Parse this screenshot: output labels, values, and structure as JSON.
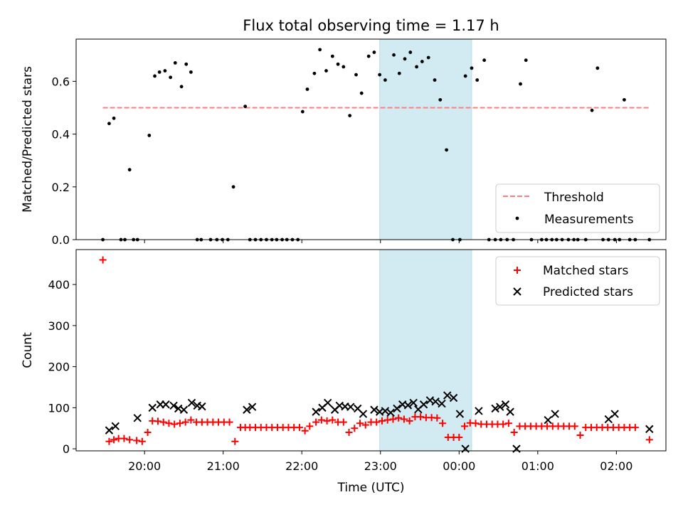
{
  "chart_data": [
    {
      "type": "scatter",
      "title": "Flux total observing time = 1.17 h",
      "ylabel": "Matched/Predicted stars",
      "xlabel": "",
      "x_unit": "hour (UTC)",
      "xlim": [
        19.13,
        26.63
      ],
      "ylim": [
        0,
        0.76
      ],
      "yticks": [
        0.0,
        0.2,
        0.4,
        0.6
      ],
      "ytick_labels": [
        "0.0",
        "0.2",
        "0.4",
        "0.6"
      ],
      "grid": false,
      "legend_position": "lower-right",
      "shaded_region": {
        "x": [
          22.99,
          24.16
        ],
        "color": "#add8e6"
      },
      "threshold": {
        "name": "Threshold",
        "value": 0.5,
        "x": [
          19.47,
          26.42
        ],
        "color": "#ff7f7f",
        "style": "dashed"
      },
      "series": [
        {
          "name": "Measurements",
          "color": "#000000",
          "marker": "dot",
          "x": [
            19.47,
            19.55,
            19.61,
            19.7,
            19.75,
            19.81,
            19.86,
            19.91,
            20.06,
            20.13,
            20.19,
            20.26,
            20.33,
            20.39,
            20.47,
            20.53,
            20.59,
            20.67,
            20.72,
            20.84,
            20.92,
            20.99,
            21.06,
            21.13,
            21.28,
            21.34,
            21.41,
            21.48,
            21.55,
            21.62,
            21.68,
            21.75,
            21.81,
            21.88,
            21.95,
            22.01,
            22.07,
            22.16,
            22.23,
            22.31,
            22.39,
            22.46,
            22.53,
            22.61,
            22.69,
            22.76,
            22.85,
            22.92,
            22.99,
            23.06,
            23.17,
            23.24,
            23.31,
            23.38,
            23.46,
            23.53,
            23.61,
            23.69,
            23.76,
            23.84,
            23.92,
            24.01,
            24.08,
            24.16,
            24.23,
            24.32,
            24.38,
            24.46,
            24.53,
            24.61,
            24.69,
            24.78,
            24.85,
            24.92,
            25.05,
            25.11,
            25.18,
            25.24,
            25.31,
            25.39,
            25.46,
            25.51,
            25.61,
            25.69,
            25.76,
            25.83,
            25.9,
            25.98,
            26.04,
            26.1,
            26.17,
            26.24,
            26.42
          ],
          "y": [
            0.0,
            0.44,
            0.46,
            0.0,
            0.0,
            0.265,
            0.0,
            0.0,
            0.395,
            0.62,
            0.635,
            0.64,
            0.615,
            0.67,
            0.58,
            0.665,
            0.635,
            0.0,
            0.0,
            0.0,
            0.0,
            0.0,
            0.0,
            0.2,
            0.505,
            0.0,
            0.0,
            0.0,
            0.0,
            0.0,
            0.0,
            0.0,
            0.0,
            0.0,
            0.0,
            0.485,
            0.57,
            0.63,
            0.72,
            0.64,
            0.695,
            0.665,
            0.655,
            0.47,
            0.625,
            0.555,
            0.695,
            0.71,
            0.625,
            0.605,
            0.7,
            0.63,
            0.685,
            0.71,
            0.655,
            0.675,
            0.69,
            0.605,
            0.53,
            0.34,
            0.0,
            0.0,
            0.62,
            0.65,
            0.605,
            0.68,
            0.0,
            0.0,
            0.0,
            0.0,
            0.0,
            0.59,
            0.68,
            0.0,
            0.0,
            0.0,
            0.0,
            0.0,
            0.0,
            0.0,
            0.0,
            0.0,
            0.0,
            0.49,
            0.65,
            0.0,
            0.0,
            0.0,
            0.0,
            0.53,
            0.0,
            0.0,
            0.0
          ]
        }
      ]
    },
    {
      "type": "scatter",
      "title": "",
      "ylabel": "Count",
      "xlabel": "Time (UTC)",
      "x_unit": "hour (UTC)",
      "xlim": [
        19.13,
        26.63
      ],
      "ylim": [
        -5,
        485
      ],
      "yticks": [
        0,
        100,
        200,
        300,
        400
      ],
      "ytick_labels": [
        "0",
        "100",
        "200",
        "300",
        "400"
      ],
      "xticks": [
        20,
        21,
        22,
        23,
        24,
        25,
        26
      ],
      "xtick_labels": [
        "20:00",
        "21:00",
        "22:00",
        "23:00",
        "00:00",
        "01:00",
        "02:00"
      ],
      "grid": false,
      "legend_position": "top-right",
      "shaded_region": {
        "x": [
          22.99,
          24.16
        ],
        "color": "#add8e6"
      },
      "series": [
        {
          "name": "Matched stars",
          "color": "#ff0000",
          "marker": "plus",
          "x": [
            19.47,
            19.55,
            19.61,
            19.67,
            19.74,
            19.81,
            19.9,
            19.97,
            20.04,
            20.1,
            20.17,
            20.24,
            20.31,
            20.38,
            20.45,
            20.52,
            20.59,
            20.66,
            20.73,
            20.8,
            20.87,
            20.94,
            21.01,
            21.08,
            21.15,
            21.22,
            21.28,
            21.34,
            21.41,
            21.48,
            21.55,
            21.62,
            21.69,
            21.76,
            21.83,
            21.9,
            21.97,
            22.04,
            22.1,
            22.18,
            22.25,
            22.32,
            22.39,
            22.46,
            22.53,
            22.6,
            22.67,
            22.74,
            22.81,
            22.88,
            22.95,
            23.02,
            23.09,
            23.16,
            23.23,
            23.3,
            23.37,
            23.44,
            23.51,
            23.58,
            23.65,
            23.72,
            23.79,
            23.86,
            23.93,
            24.0,
            24.07,
            24.14,
            24.21,
            24.28,
            24.35,
            24.42,
            24.49,
            24.56,
            24.63,
            24.7,
            24.77,
            24.84,
            24.91,
            24.98,
            25.05,
            25.12,
            25.19,
            25.26,
            25.33,
            25.4,
            25.47,
            25.54,
            25.61,
            25.68,
            25.75,
            25.82,
            25.89,
            25.96,
            26.03,
            26.1,
            26.17,
            26.24,
            26.42
          ],
          "y": [
            460,
            18,
            22,
            25,
            25,
            22,
            20,
            18,
            40,
            68,
            67,
            65,
            62,
            60,
            62,
            65,
            70,
            65,
            65,
            65,
            65,
            65,
            65,
            65,
            18,
            52,
            52,
            52,
            52,
            52,
            52,
            52,
            52,
            52,
            52,
            52,
            52,
            44,
            55,
            65,
            70,
            68,
            70,
            65,
            65,
            40,
            50,
            62,
            58,
            65,
            65,
            68,
            70,
            72,
            75,
            72,
            68,
            78,
            78,
            76,
            76,
            75,
            62,
            28,
            28,
            28,
            55,
            63,
            62,
            60,
            60,
            60,
            60,
            60,
            62,
            40,
            55,
            55,
            55,
            55,
            55,
            55,
            55,
            55,
            55,
            55,
            55,
            33,
            52,
            52,
            52,
            52,
            52,
            52,
            52,
            52,
            52,
            52,
            22
          ]
        },
        {
          "name": "Predicted stars",
          "color": "#000000",
          "marker": "x",
          "x": [
            19.55,
            19.63,
            19.91,
            20.1,
            20.2,
            20.27,
            20.37,
            20.43,
            20.5,
            20.6,
            20.67,
            20.73,
            21.3,
            21.37,
            22.18,
            22.26,
            22.33,
            22.42,
            22.48,
            22.55,
            22.62,
            22.71,
            22.78,
            22.92,
            22.99,
            23.06,
            23.13,
            23.21,
            23.28,
            23.35,
            23.42,
            23.48,
            23.55,
            23.63,
            23.7,
            23.78,
            23.85,
            23.93,
            24.01,
            24.08,
            24.25,
            24.46,
            24.52,
            24.59,
            24.65,
            24.73,
            25.13,
            25.22,
            25.9,
            25.98,
            26.42
          ],
          "y": [
            45,
            55,
            75,
            100,
            108,
            108,
            105,
            98,
            95,
            112,
            105,
            103,
            95,
            102,
            90,
            100,
            112,
            95,
            105,
            103,
            102,
            98,
            85,
            95,
            90,
            92,
            88,
            98,
            108,
            106,
            112,
            96,
            108,
            118,
            115,
            110,
            130,
            124,
            85,
            0,
            92,
            98,
            102,
            108,
            90,
            0,
            70,
            85,
            72,
            85,
            48
          ]
        }
      ]
    }
  ]
}
